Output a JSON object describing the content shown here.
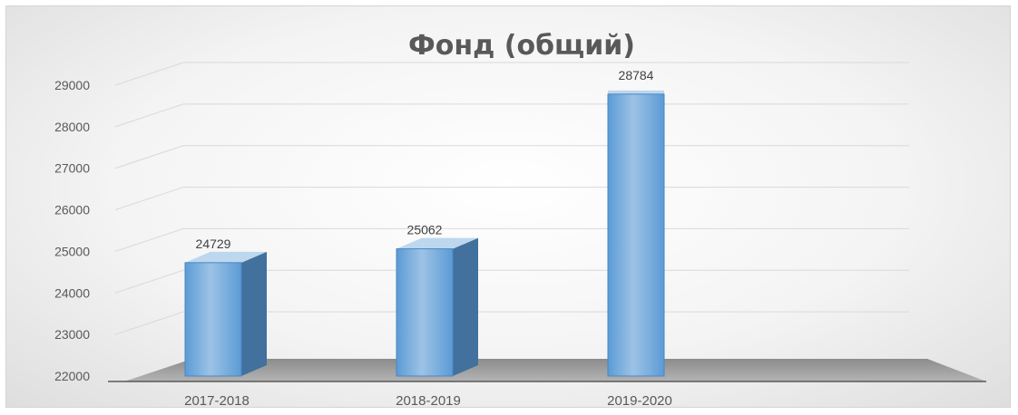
{
  "chart_data": {
    "type": "bar",
    "title": "Фонд (общий)",
    "categories": [
      "2017-2018",
      "2018-2019",
      "2019-2020"
    ],
    "values": [
      24729,
      25062,
      28784
    ],
    "data_labels": [
      "24729",
      "25062",
      "28784"
    ],
    "ylim": [
      22000,
      29000
    ],
    "yticks": [
      "22000",
      "23000",
      "24000",
      "25000",
      "26000",
      "27000",
      "28000",
      "29000"
    ],
    "xlabel": "",
    "ylabel": "",
    "grid": true,
    "legend": "none",
    "style": "3d-column",
    "colors": {
      "bar_front": "#5b9bd5",
      "bar_front_light": "#9dc3e6",
      "bar_side": "#41719c",
      "bar_top": "#bdd7ee",
      "floor": "#bfbfbf",
      "gridline": "#d9d9d9",
      "axis": "#595959"
    }
  }
}
